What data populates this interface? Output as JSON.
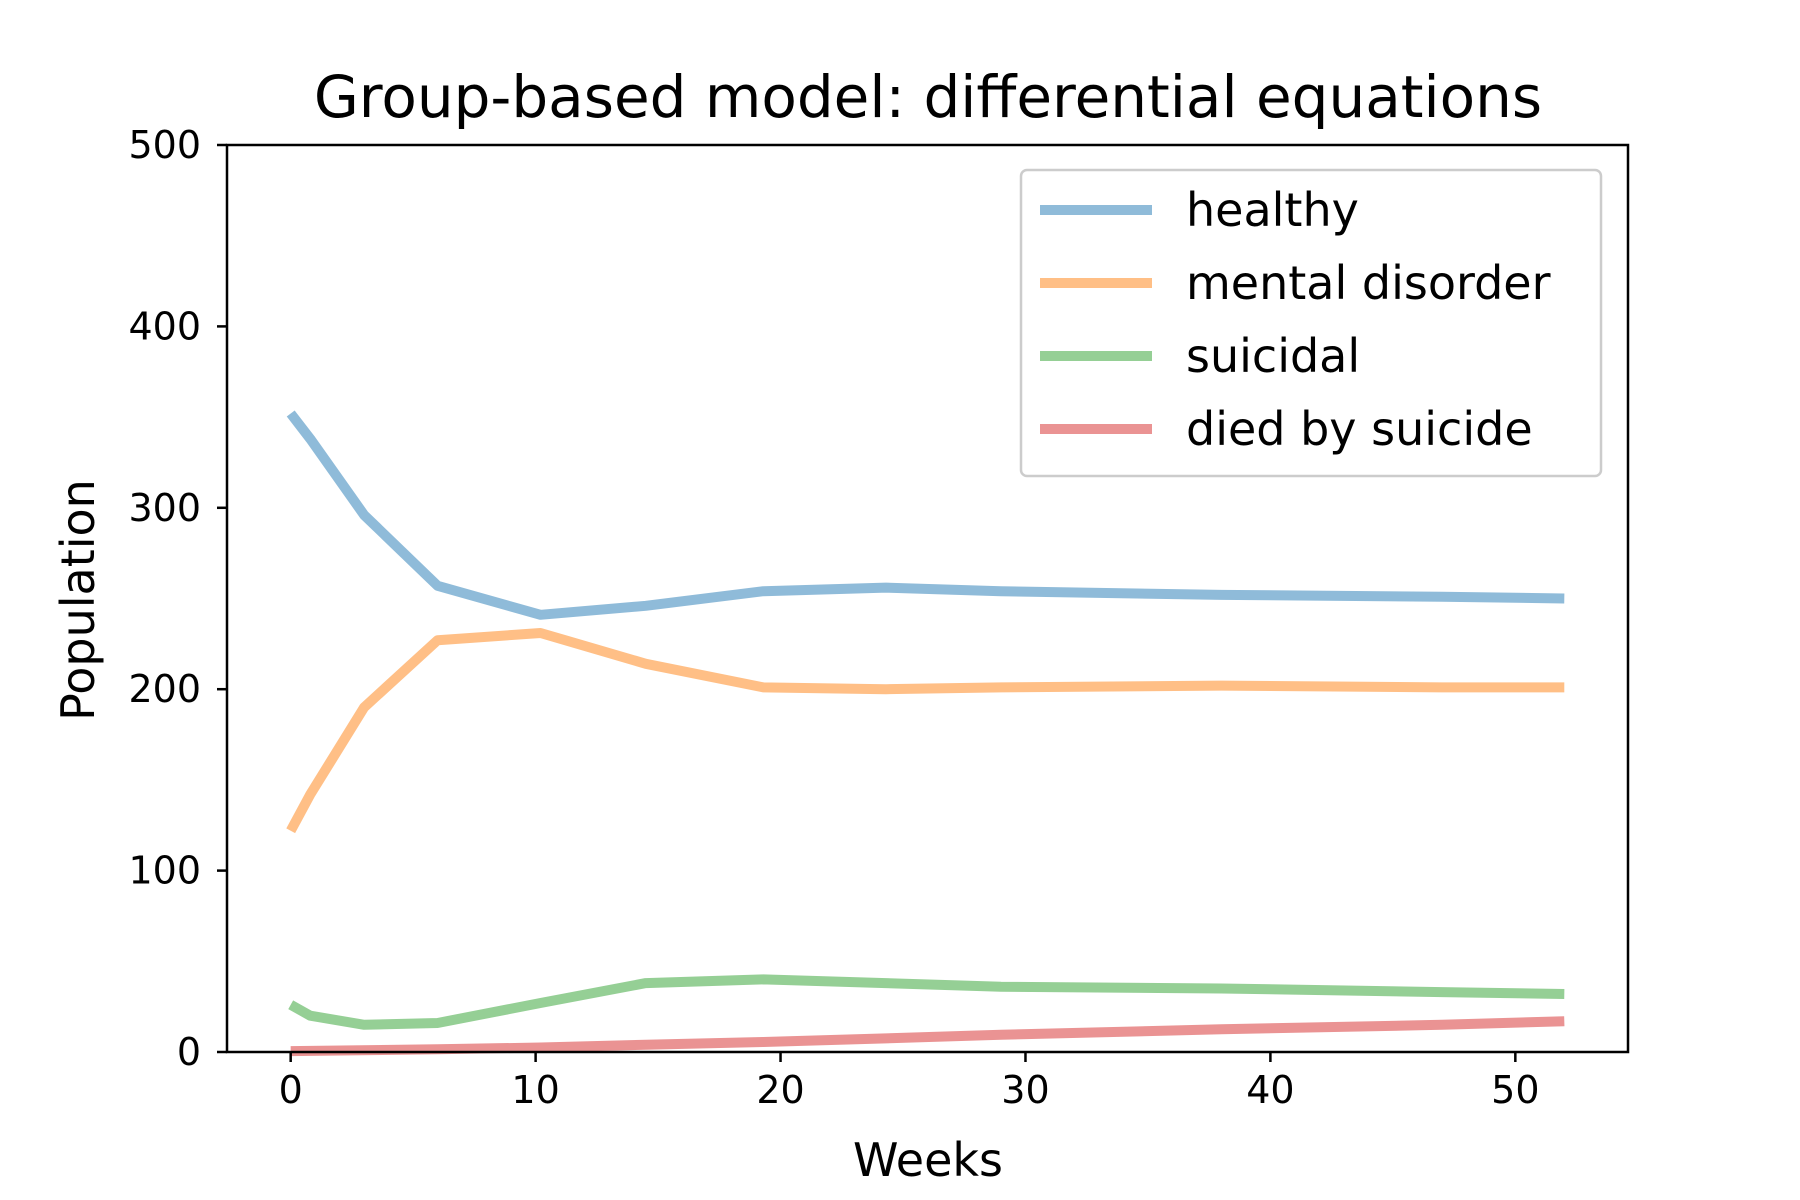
{
  "chart_data": {
    "type": "line",
    "title": "Group-based model: differential equations",
    "xlabel": "Weeks",
    "ylabel": "Population",
    "xlim": [
      -2.6,
      54.6
    ],
    "ylim": [
      0,
      500
    ],
    "xticks": [
      0,
      10,
      20,
      30,
      40,
      50
    ],
    "yticks": [
      0,
      100,
      200,
      300,
      400,
      500
    ],
    "grid": false,
    "legend_position": "top-right",
    "series": [
      {
        "name": "healthy",
        "color": "#1f77b4",
        "x": [
          0,
          0.8,
          3,
          6,
          10.2,
          14.5,
          19.3,
          24.3,
          29,
          38,
          47,
          52
        ],
        "y": [
          352,
          338,
          296,
          257,
          241,
          246,
          254,
          256,
          254,
          252,
          251,
          250
        ]
      },
      {
        "name": "mental disorder",
        "color": "#ff7f0e",
        "x": [
          0,
          0.8,
          3,
          6,
          10.2,
          14.5,
          19.3,
          24.3,
          29,
          38,
          47,
          52
        ],
        "y": [
          122,
          142,
          190,
          227,
          231,
          214,
          201,
          200,
          201,
          202,
          201,
          201
        ]
      },
      {
        "name": "suicidal",
        "color": "#2ca02c",
        "x": [
          0,
          0.8,
          3,
          6,
          10.2,
          14.5,
          19.3,
          24.3,
          29,
          38,
          47,
          52
        ],
        "y": [
          26,
          20,
          15,
          16,
          27,
          38,
          40,
          38,
          36,
          35,
          33,
          32
        ]
      },
      {
        "name": "died by suicide",
        "color": "#d62728",
        "x": [
          0,
          6,
          10.2,
          14.5,
          19.3,
          24.3,
          29,
          38,
          47,
          52
        ],
        "y": [
          0.5,
          1.5,
          2.5,
          4,
          5.5,
          7.5,
          9.5,
          12.5,
          15,
          17
        ]
      }
    ]
  }
}
